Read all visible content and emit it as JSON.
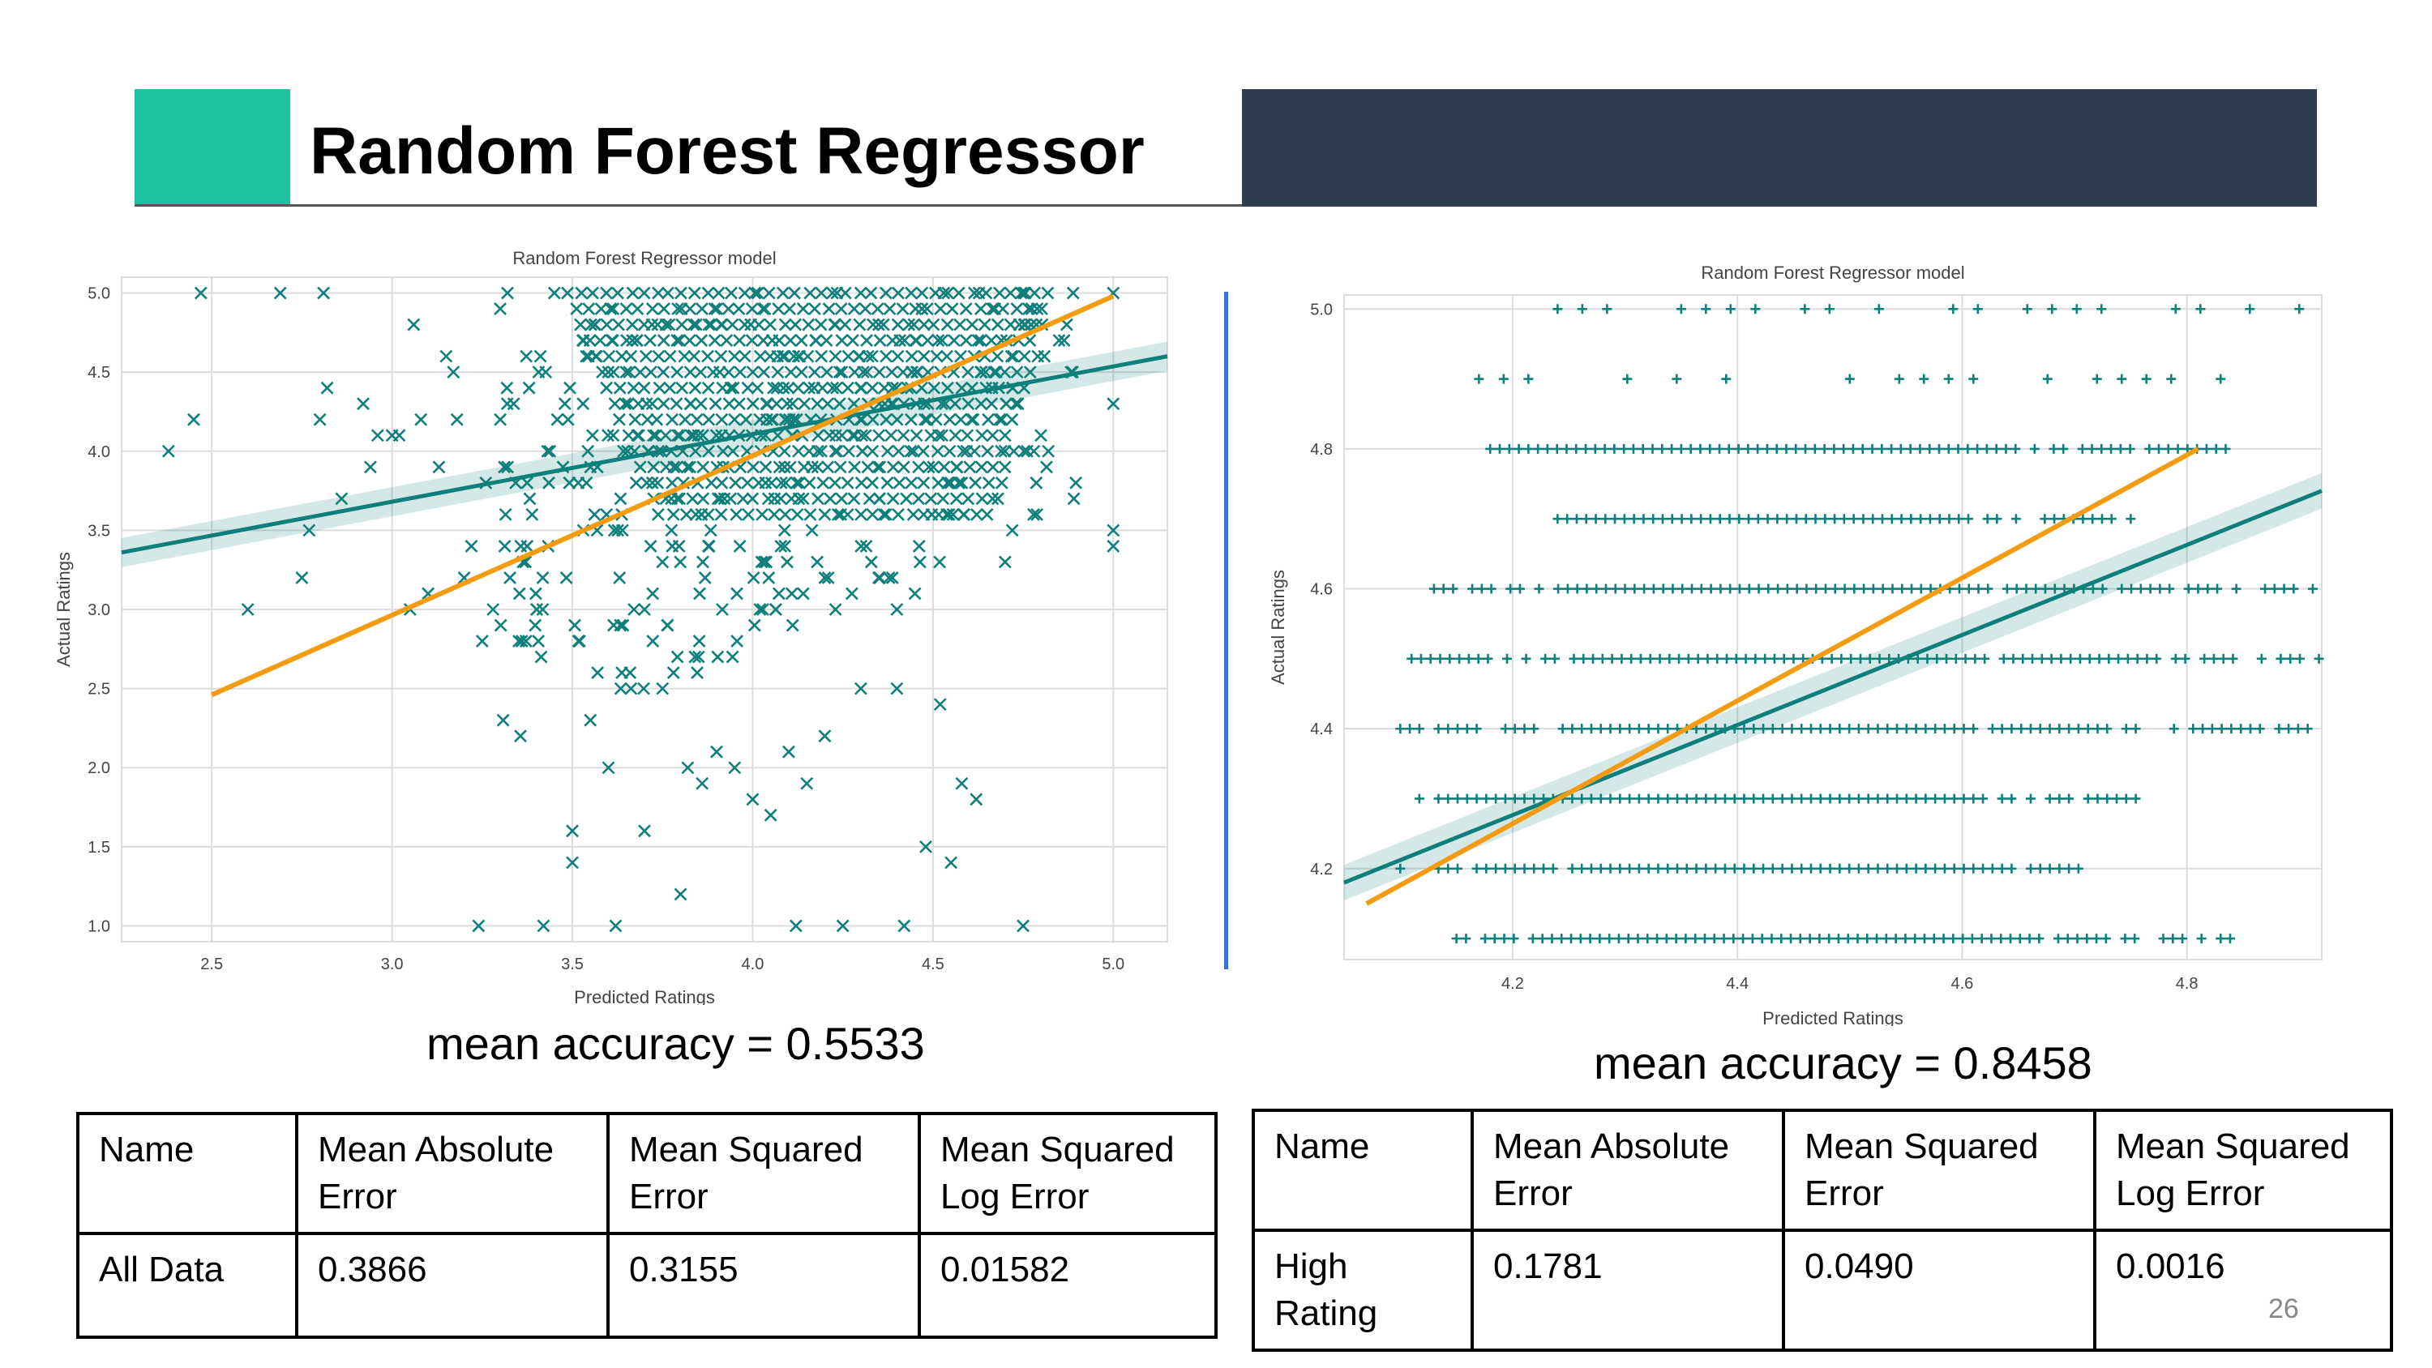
{
  "slide": {
    "title": "Random Forest Regressor",
    "page_number": "26",
    "colors": {
      "accent": "#1cc3a0",
      "band": "#2e3e50",
      "divider": "#3a6fd8",
      "points": "#0f7f7b",
      "ideal_line": "#f39c12"
    }
  },
  "left": {
    "accuracy_text": "mean accuracy = 0.5533",
    "chart_data": {
      "type": "scatter",
      "title": "Random Forest Regressor model",
      "xlabel": "Predicted Ratings",
      "ylabel": "Actual Ratings",
      "xlim": [
        2.25,
        5.15
      ],
      "ylim": [
        0.9,
        5.1
      ],
      "xticks": [
        "2.5",
        "3.0",
        "3.5",
        "4.0",
        "4.5",
        "5.0"
      ],
      "yticks": [
        "1.0",
        "1.5",
        "2.0",
        "2.5",
        "3.0",
        "3.5",
        "4.0",
        "4.5",
        "5.0"
      ],
      "marker": "x",
      "grid": true,
      "dense_cluster": {
        "x_range": [
          3.85,
          4.6
        ],
        "y_range": [
          3.6,
          5.0
        ]
      },
      "points": [
        [
          2.38,
          4.0
        ],
        [
          2.45,
          4.2
        ],
        [
          2.47,
          5.0
        ],
        [
          2.6,
          3.0
        ],
        [
          2.69,
          5.0
        ],
        [
          2.75,
          3.2
        ],
        [
          2.77,
          3.5
        ],
        [
          2.8,
          4.2
        ],
        [
          2.81,
          5.0
        ],
        [
          2.82,
          4.4
        ],
        [
          2.86,
          3.7
        ],
        [
          2.92,
          4.3
        ],
        [
          2.94,
          3.9
        ],
        [
          2.96,
          4.1
        ],
        [
          3.0,
          4.1
        ],
        [
          3.02,
          4.1
        ],
        [
          3.05,
          3.0
        ],
        [
          3.08,
          4.2
        ],
        [
          3.06,
          4.8
        ],
        [
          3.1,
          3.1
        ],
        [
          3.13,
          3.9
        ],
        [
          3.15,
          4.6
        ],
        [
          3.17,
          4.5
        ],
        [
          3.18,
          4.2
        ],
        [
          3.2,
          3.2
        ],
        [
          3.22,
          3.4
        ],
        [
          3.24,
          1.0
        ],
        [
          3.25,
          2.8
        ],
        [
          3.26,
          3.8
        ],
        [
          3.28,
          3.0
        ],
        [
          3.3,
          4.9
        ],
        [
          3.32,
          5.0
        ],
        [
          3.36,
          2.8
        ],
        [
          3.38,
          4.4
        ],
        [
          3.42,
          1.0
        ],
        [
          3.45,
          5.0
        ],
        [
          3.5,
          1.6
        ],
        [
          3.5,
          1.4
        ],
        [
          3.52,
          2.8
        ],
        [
          3.55,
          2.3
        ],
        [
          3.6,
          2.0
        ],
        [
          3.62,
          1.0
        ],
        [
          3.66,
          2.6
        ],
        [
          3.7,
          1.6
        ],
        [
          3.75,
          2.5
        ],
        [
          3.8,
          1.2
        ],
        [
          3.82,
          2.0
        ],
        [
          3.86,
          1.9
        ],
        [
          3.9,
          2.1
        ],
        [
          3.95,
          2.0
        ],
        [
          4.0,
          1.8
        ],
        [
          4.05,
          1.7
        ],
        [
          4.1,
          2.1
        ],
        [
          4.12,
          1.0
        ],
        [
          4.15,
          1.9
        ],
        [
          4.2,
          2.2
        ],
        [
          4.25,
          1.0
        ],
        [
          4.3,
          2.5
        ],
        [
          4.4,
          2.5
        ],
        [
          4.42,
          1.0
        ],
        [
          4.48,
          1.5
        ],
        [
          4.55,
          1.4
        ],
        [
          4.52,
          2.4
        ],
        [
          4.58,
          1.9
        ],
        [
          4.62,
          1.8
        ],
        [
          4.75,
          1.0
        ],
        [
          4.7,
          3.3
        ],
        [
          4.72,
          3.5
        ],
        [
          4.78,
          4.0
        ],
        [
          4.82,
          4.0
        ],
        [
          4.68,
          3.7
        ],
        [
          5.0,
          3.5
        ],
        [
          5.0,
          3.4
        ],
        [
          5.0,
          4.3
        ],
        [
          5.0,
          5.0
        ],
        [
          4.4,
          3.0
        ],
        [
          4.45,
          3.1
        ],
        [
          4.2,
          3.2
        ],
        [
          3.75,
          3.3
        ],
        [
          3.7,
          3.0
        ]
      ],
      "regression_line": {
        "x": [
          2.25,
          5.15
        ],
        "y": [
          3.36,
          4.6
        ]
      },
      "reference_line": {
        "x": [
          2.5,
          5.0
        ],
        "y": [
          2.46,
          4.98
        ]
      }
    },
    "table": {
      "headers": [
        "Name",
        "Mean Absolute Error",
        "Mean Squared Error",
        "Mean Squared Log Error"
      ],
      "rows": [
        [
          "All Data",
          "0.3866",
          "0.3155",
          "0.01582"
        ]
      ]
    }
  },
  "right": {
    "accuracy_text": "mean accuracy = 0.8458",
    "chart_data": {
      "type": "scatter",
      "title": "Random Forest Regressor model",
      "xlabel": "Predicted Ratings",
      "ylabel": "Actual Ratings",
      "xlim": [
        4.05,
        4.92
      ],
      "ylim": [
        4.07,
        5.02
      ],
      "xticks": [
        "4.2",
        "4.4",
        "4.6",
        "4.8"
      ],
      "yticks": [
        "4.2",
        "4.4",
        "4.6",
        "4.8",
        "5.0"
      ],
      "marker": "+",
      "grid": true,
      "rows": [
        {
          "y": 5.0,
          "x_from": 4.24,
          "x_to": 4.92,
          "sparse": true
        },
        {
          "y": 4.9,
          "x_from": 4.17,
          "x_to": 4.86,
          "sparse": true
        },
        {
          "y": 4.8,
          "x_from": 4.18,
          "x_to": 4.84,
          "sparse": false
        },
        {
          "y": 4.7,
          "x_from": 4.24,
          "x_to": 4.75,
          "sparse": false
        },
        {
          "y": 4.6,
          "x_from": 4.13,
          "x_to": 4.92,
          "sparse": false
        },
        {
          "y": 4.5,
          "x_from": 4.11,
          "x_to": 4.92,
          "sparse": false
        },
        {
          "y": 4.4,
          "x_from": 4.1,
          "x_to": 4.91,
          "sparse": false
        },
        {
          "y": 4.3,
          "x_from": 4.1,
          "x_to": 4.76,
          "sparse": false
        },
        {
          "y": 4.2,
          "x_from": 4.1,
          "x_to": 4.71,
          "sparse": false
        },
        {
          "y": 4.1,
          "x_from": 4.15,
          "x_to": 4.84,
          "sparse": false
        }
      ],
      "regression_line": {
        "x": [
          4.05,
          4.92
        ],
        "y": [
          4.18,
          4.74
        ]
      },
      "reference_line": {
        "x": [
          4.07,
          4.81
        ],
        "y": [
          4.15,
          4.8
        ]
      }
    },
    "table": {
      "headers": [
        "Name",
        "Mean Absolute Error",
        "Mean Squared Error",
        "Mean Squared Log Error"
      ],
      "rows": [
        [
          "High Rating",
          "0.1781",
          "0.0490",
          "0.0016"
        ]
      ]
    }
  }
}
